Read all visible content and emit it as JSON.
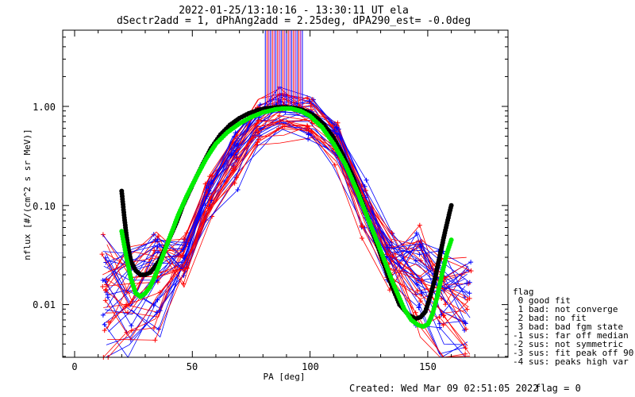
{
  "chart_data": {
    "type": "line",
    "title": "2022-01-25/13:10:16 - 13:30:11 UT ela",
    "subtitle": "dSectr2add = 1, dPhAng2add = 2.25deg, dPA290_est=  -0.0deg",
    "xlabel": "PA [deg]",
    "ylabel": "nflux [#/(cm^2 s sr MeV)]",
    "xlim": [
      -5,
      185
    ],
    "ylim": [
      0.003,
      6
    ],
    "y_scale": "log",
    "grid": false,
    "x_ticks": [
      0,
      50,
      100,
      150
    ],
    "x_tick_labels": [
      "0",
      "50",
      "100",
      "150"
    ],
    "y_ticks": [
      0.01,
      0.1,
      1.0
    ],
    "y_tick_labels": [
      "0.01",
      "0.10",
      "1.00"
    ],
    "series": [
      {
        "color": "#000000",
        "style": "thick-dots",
        "x": [
          20,
          21,
          22,
          23,
          24,
          26,
          28,
          30,
          32,
          34,
          36,
          38,
          40,
          43,
          46,
          50,
          54,
          58,
          62,
          66,
          70,
          74,
          78,
          82,
          86,
          90,
          94,
          98,
          102,
          106,
          110,
          114,
          118,
          122,
          126,
          130,
          134,
          138,
          142,
          145,
          147,
          149,
          151,
          153,
          155,
          157,
          159,
          160
        ],
        "y": [
          0.14,
          0.08,
          0.05,
          0.035,
          0.027,
          0.022,
          0.02,
          0.02,
          0.021,
          0.024,
          0.028,
          0.035,
          0.045,
          0.065,
          0.1,
          0.16,
          0.25,
          0.38,
          0.52,
          0.65,
          0.76,
          0.85,
          0.92,
          0.96,
          0.98,
          0.98,
          0.96,
          0.9,
          0.8,
          0.65,
          0.48,
          0.32,
          0.2,
          0.11,
          0.06,
          0.032,
          0.017,
          0.01,
          0.0078,
          0.0072,
          0.0075,
          0.0085,
          0.012,
          0.018,
          0.03,
          0.05,
          0.08,
          0.1
        ]
      },
      {
        "color": "#00ee00",
        "style": "thick-dots",
        "x": [
          20,
          22,
          24,
          26,
          28,
          30,
          32,
          34,
          36,
          40,
          44,
          48,
          52,
          56,
          60,
          65,
          70,
          75,
          80,
          85,
          88,
          92,
          96,
          100,
          105,
          110,
          115,
          120,
          125,
          130,
          135,
          140,
          143,
          146,
          148,
          150,
          152,
          154,
          156,
          158,
          160
        ],
        "y": [
          0.055,
          0.03,
          0.018,
          0.013,
          0.012,
          0.013,
          0.015,
          0.019,
          0.025,
          0.045,
          0.08,
          0.13,
          0.2,
          0.3,
          0.42,
          0.55,
          0.67,
          0.78,
          0.87,
          0.93,
          0.95,
          0.95,
          0.9,
          0.8,
          0.62,
          0.42,
          0.26,
          0.14,
          0.07,
          0.035,
          0.017,
          0.009,
          0.007,
          0.0062,
          0.006,
          0.0063,
          0.008,
          0.012,
          0.02,
          0.032,
          0.045
        ]
      }
    ],
    "legend": {
      "title": "flag",
      "position": "right",
      "entries": [
        " 0 good fit",
        " 1 bad: not converge",
        " 2 bad: no fit",
        " 3 bad: bad fgm state",
        "-1 sus: far off median",
        "-2 sus: not symmetric",
        "-3 sus: fit peak off 90",
        "-4 sus: peaks high var"
      ]
    }
  },
  "footer": {
    "created": "Created: Wed Mar 09 02:51:05 2022",
    "flag": "flag = 0"
  },
  "colors": {
    "blue": "#0000ff",
    "red": "#ff0000",
    "green": "#00ee00",
    "black": "#000000"
  }
}
